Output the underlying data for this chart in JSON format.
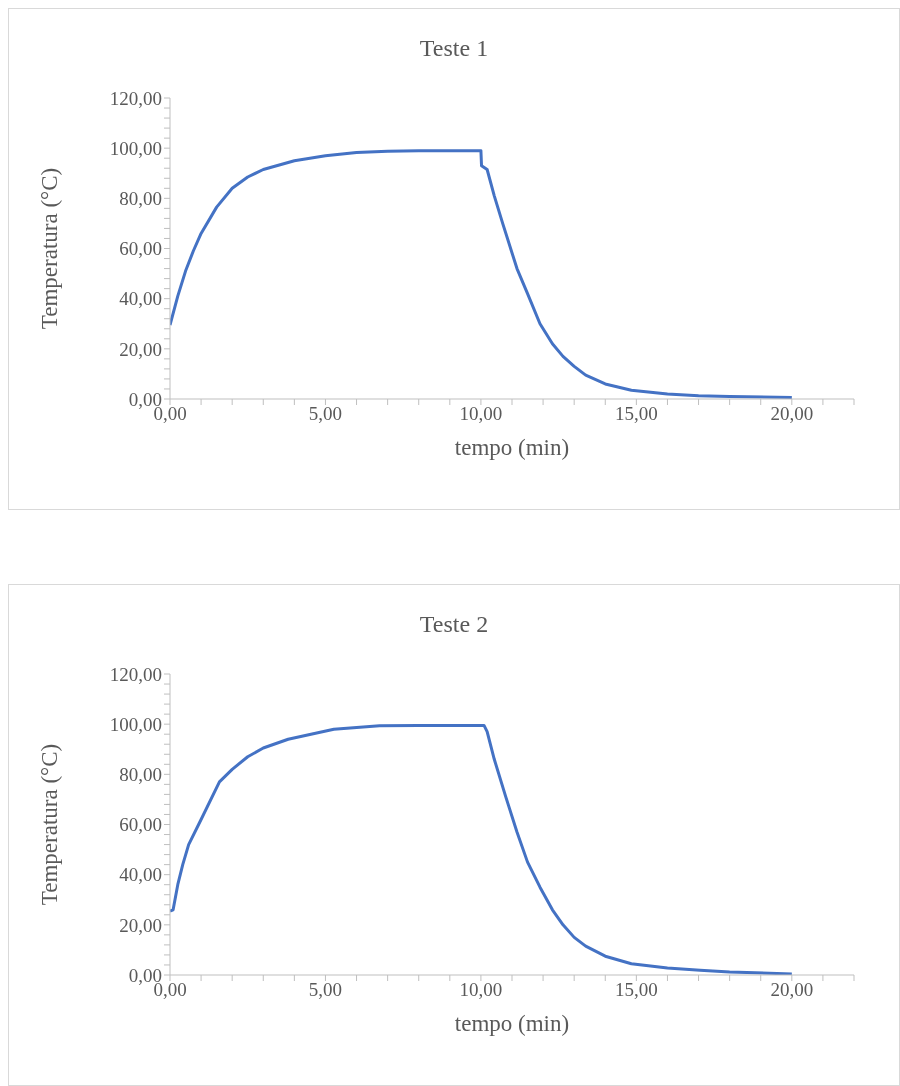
{
  "chart_data": [
    {
      "type": "line",
      "title": "Teste 1",
      "xlabel": "tempo (min)",
      "ylabel": "Temperatura (°C)",
      "xlim": [
        0,
        22
      ],
      "ylim": [
        0,
        120
      ],
      "xticks": [
        {
          "value": 0,
          "label": "0,00"
        },
        {
          "value": 1,
          "label": null
        },
        {
          "value": 2,
          "label": null
        },
        {
          "value": 3,
          "label": null
        },
        {
          "value": 4,
          "label": null
        },
        {
          "value": 5,
          "label": "5,00"
        },
        {
          "value": 6,
          "label": null
        },
        {
          "value": 7,
          "label": null
        },
        {
          "value": 8,
          "label": null
        },
        {
          "value": 9,
          "label": null
        },
        {
          "value": 10,
          "label": "10,00"
        },
        {
          "value": 11,
          "label": null
        },
        {
          "value": 12,
          "label": null
        },
        {
          "value": 13,
          "label": null
        },
        {
          "value": 14,
          "label": null
        },
        {
          "value": 15,
          "label": "15,00"
        },
        {
          "value": 16,
          "label": null
        },
        {
          "value": 17,
          "label": null
        },
        {
          "value": 18,
          "label": null
        },
        {
          "value": 19,
          "label": null
        },
        {
          "value": 20,
          "label": "20,00"
        },
        {
          "value": 21,
          "label": null
        },
        {
          "value": 22,
          "label": null
        }
      ],
      "yticks": [
        {
          "value": 0,
          "label": "0,00"
        },
        {
          "value": 4,
          "label": null
        },
        {
          "value": 8,
          "label": null
        },
        {
          "value": 12,
          "label": null
        },
        {
          "value": 16,
          "label": null
        },
        {
          "value": 20,
          "label": "20,00"
        },
        {
          "value": 24,
          "label": null
        },
        {
          "value": 28,
          "label": null
        },
        {
          "value": 32,
          "label": null
        },
        {
          "value": 36,
          "label": null
        },
        {
          "value": 40,
          "label": "40,00"
        },
        {
          "value": 44,
          "label": null
        },
        {
          "value": 48,
          "label": null
        },
        {
          "value": 52,
          "label": null
        },
        {
          "value": 56,
          "label": null
        },
        {
          "value": 60,
          "label": "60,00"
        },
        {
          "value": 64,
          "label": null
        },
        {
          "value": 68,
          "label": null
        },
        {
          "value": 72,
          "label": null
        },
        {
          "value": 76,
          "label": null
        },
        {
          "value": 80,
          "label": "80,00"
        },
        {
          "value": 84,
          "label": null
        },
        {
          "value": 88,
          "label": null
        },
        {
          "value": 92,
          "label": null
        },
        {
          "value": 96,
          "label": null
        },
        {
          "value": 100,
          "label": "100,00"
        },
        {
          "value": 104,
          "label": null
        },
        {
          "value": 108,
          "label": null
        },
        {
          "value": 112,
          "label": null
        },
        {
          "value": 116,
          "label": null
        },
        {
          "value": 120,
          "label": "120,00"
        }
      ],
      "x": [
        0,
        0.25,
        0.5,
        0.75,
        1,
        1.5,
        2,
        2.5,
        3,
        4,
        5,
        6,
        7,
        8,
        9,
        10,
        10.02,
        10.2,
        10.43,
        10.7,
        11.16,
        11.5,
        11.9,
        12.3,
        12.64,
        13,
        13.37,
        14,
        14.84,
        16,
        17,
        18,
        20
      ],
      "series": [
        {
          "color": "#4472c4",
          "values": [
            29.5,
            41,
            51,
            59,
            66,
            76.5,
            84,
            88.5,
            91.5,
            95,
            97,
            98.3,
            98.8,
            99,
            99,
            99,
            93,
            91.5,
            81,
            70,
            52,
            42,
            30,
            22,
            17,
            13,
            9.5,
            6,
            3.5,
            2,
            1.3,
            1,
            0.6
          ]
        }
      ]
    },
    {
      "type": "line",
      "title": "Teste 2",
      "xlabel": "tempo (min)",
      "ylabel": "Temperatura (°C)",
      "xlim": [
        0,
        22
      ],
      "ylim": [
        0,
        120
      ],
      "xticks": [
        {
          "value": 0,
          "label": "0,00"
        },
        {
          "value": 1,
          "label": null
        },
        {
          "value": 2,
          "label": null
        },
        {
          "value": 3,
          "label": null
        },
        {
          "value": 4,
          "label": null
        },
        {
          "value": 5,
          "label": "5,00"
        },
        {
          "value": 6,
          "label": null
        },
        {
          "value": 7,
          "label": null
        },
        {
          "value": 8,
          "label": null
        },
        {
          "value": 9,
          "label": null
        },
        {
          "value": 10,
          "label": "10,00"
        },
        {
          "value": 11,
          "label": null
        },
        {
          "value": 12,
          "label": null
        },
        {
          "value": 13,
          "label": null
        },
        {
          "value": 14,
          "label": null
        },
        {
          "value": 15,
          "label": "15,00"
        },
        {
          "value": 16,
          "label": null
        },
        {
          "value": 17,
          "label": null
        },
        {
          "value": 18,
          "label": null
        },
        {
          "value": 19,
          "label": null
        },
        {
          "value": 20,
          "label": "20,00"
        },
        {
          "value": 21,
          "label": null
        },
        {
          "value": 22,
          "label": null
        }
      ],
      "yticks": [
        {
          "value": 0,
          "label": "0,00"
        },
        {
          "value": 4,
          "label": null
        },
        {
          "value": 8,
          "label": null
        },
        {
          "value": 12,
          "label": null
        },
        {
          "value": 16,
          "label": null
        },
        {
          "value": 20,
          "label": "20,00"
        },
        {
          "value": 24,
          "label": null
        },
        {
          "value": 28,
          "label": null
        },
        {
          "value": 32,
          "label": null
        },
        {
          "value": 36,
          "label": null
        },
        {
          "value": 40,
          "label": "40,00"
        },
        {
          "value": 44,
          "label": null
        },
        {
          "value": 48,
          "label": null
        },
        {
          "value": 52,
          "label": null
        },
        {
          "value": 56,
          "label": null
        },
        {
          "value": 60,
          "label": "60,00"
        },
        {
          "value": 64,
          "label": null
        },
        {
          "value": 68,
          "label": null
        },
        {
          "value": 72,
          "label": null
        },
        {
          "value": 76,
          "label": null
        },
        {
          "value": 80,
          "label": "80,00"
        },
        {
          "value": 84,
          "label": null
        },
        {
          "value": 88,
          "label": null
        },
        {
          "value": 92,
          "label": null
        },
        {
          "value": 96,
          "label": null
        },
        {
          "value": 100,
          "label": "100,00"
        },
        {
          "value": 104,
          "label": null
        },
        {
          "value": 108,
          "label": null
        },
        {
          "value": 112,
          "label": null
        },
        {
          "value": 116,
          "label": null
        },
        {
          "value": 120,
          "label": "120,00"
        }
      ],
      "x": [
        0,
        0.1,
        0.25,
        0.41,
        0.6,
        1,
        1.59,
        2,
        2.5,
        3,
        3.8,
        5.27,
        6.74,
        8,
        9,
        10.1,
        10.2,
        10.43,
        10.8,
        11.16,
        11.5,
        11.9,
        12.3,
        12.64,
        13,
        13.37,
        14,
        14.84,
        16,
        17.05,
        18,
        20
      ],
      "series": [
        {
          "color": "#4472c4",
          "values": [
            25.5,
            26,
            36,
            44,
            52,
            62,
            77,
            82,
            87,
            90.5,
            94,
            98,
            99.4,
            99.5,
            99.5,
            99.5,
            97,
            86,
            71,
            57,
            45,
            35,
            26,
            20,
            15,
            11.5,
            7.5,
            4.5,
            2.8,
            1.9,
            1.2,
            0.4
          ]
        }
      ]
    }
  ]
}
